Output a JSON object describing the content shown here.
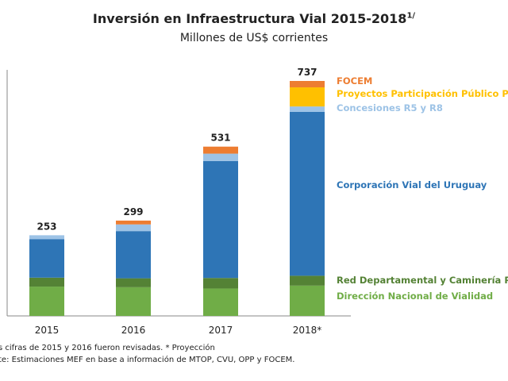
{
  "chart_data": {
    "type": "bar",
    "stacked": true,
    "title": "Inversión en Infraestructura Vial 2015-2018",
    "title_superscript": "1/",
    "subtitle": "Millones de US$ corrientes",
    "categories": [
      "2015",
      "2016",
      "2017",
      "2018*"
    ],
    "totals": [
      253,
      299,
      531,
      737
    ],
    "series": [
      {
        "name": "Dirección Nacional de Vialidad",
        "color": "#70AD47",
        "values": [
          92,
          90,
          86,
          95
        ]
      },
      {
        "name": "Red Departamental y Caminería Rural",
        "color": "#548235",
        "values": [
          28,
          28,
          33,
          31
        ]
      },
      {
        "name": "Corporación Vial del Uruguay",
        "color": "#2E75B6",
        "values": [
          121,
          148,
          367,
          514
        ]
      },
      {
        "name": "Concesiones R5 y R8",
        "color": "#9DC3E6",
        "values": [
          12,
          21,
          23,
          17
        ]
      },
      {
        "name": "Proyectos Participación Público Privada",
        "color": "#FFC000",
        "values": [
          0,
          0,
          0,
          60
        ]
      },
      {
        "name": "FOCEM",
        "color": "#ED7D31",
        "values": [
          0,
          12,
          22,
          20
        ]
      }
    ],
    "ylim": [
      0,
      780
    ],
    "grid": false,
    "legend": "right"
  },
  "footnotes": {
    "line1": "s cifras de 2015 y 2016 fueron revisadas. * Proyección",
    "line2": "te: Estimaciones MEF en base a información de MTOP, CVU, OPP y FOCEM."
  }
}
